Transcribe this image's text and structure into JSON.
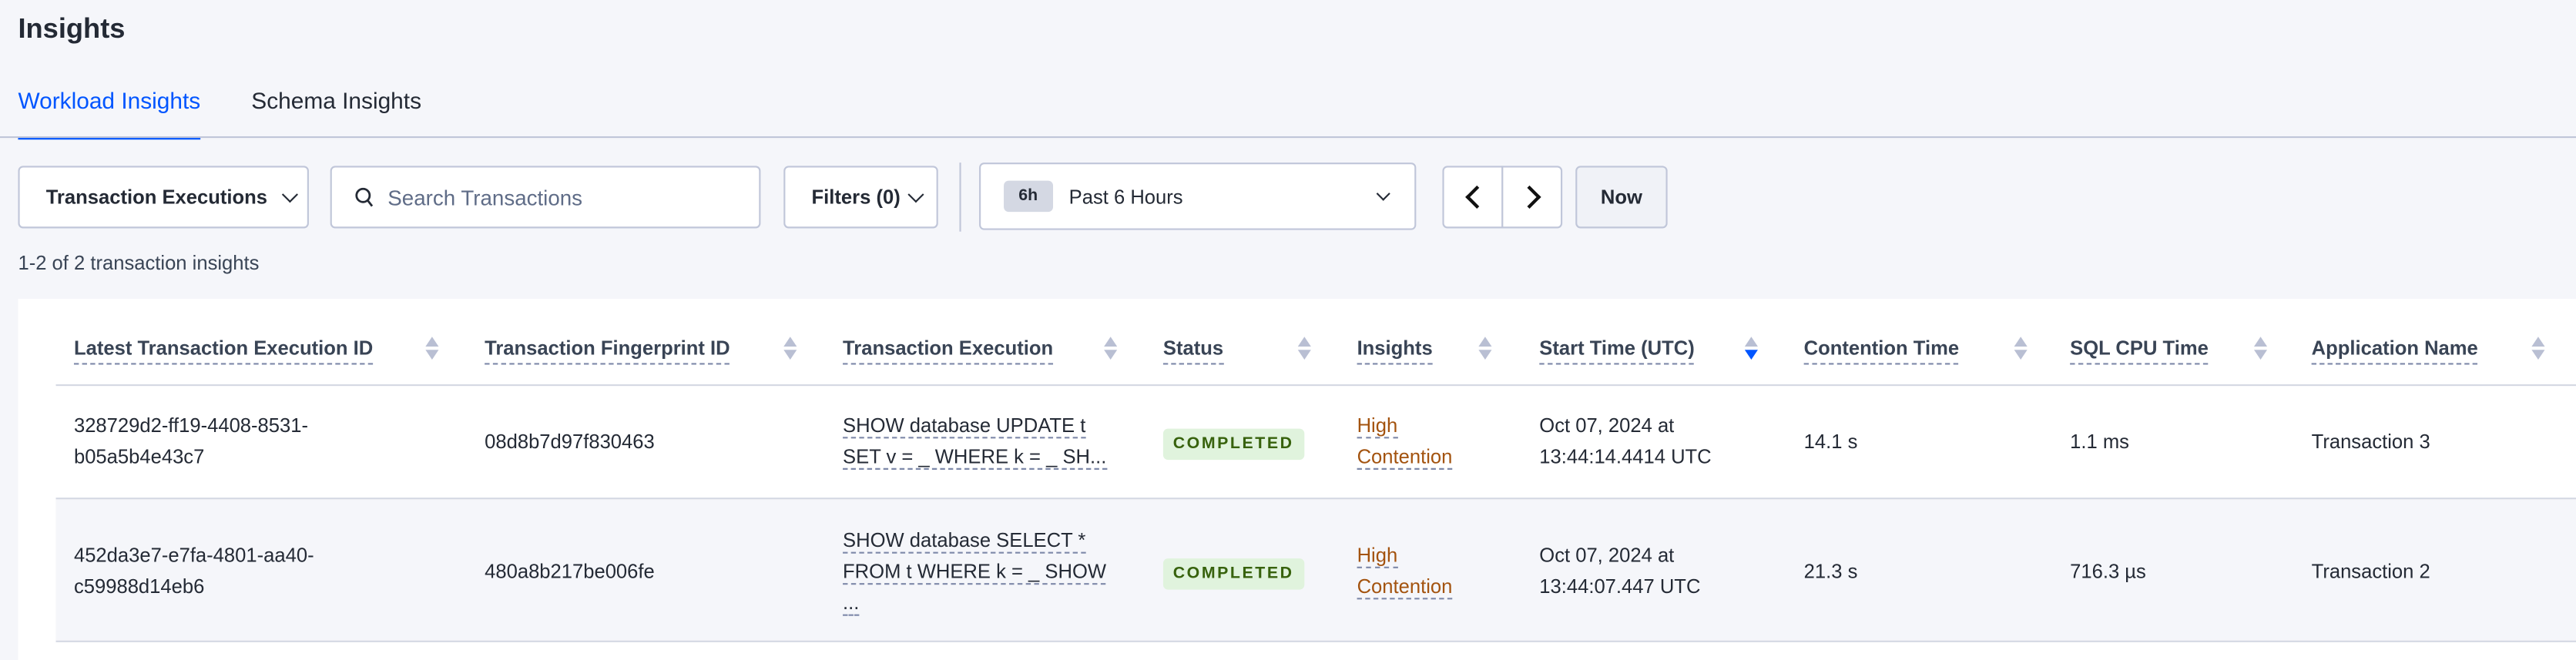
{
  "page_title": "Insights",
  "tabs": [
    {
      "label": "Workload Insights",
      "active": true
    },
    {
      "label": "Schema Insights",
      "active": false
    }
  ],
  "toolbar": {
    "view_select": "Transaction Executions",
    "search_placeholder": "Search Transactions",
    "filters_label": "Filters (0)",
    "time_badge": "6h",
    "time_range": "Past 6 Hours",
    "now_label": "Now"
  },
  "result_count": "1-2 of 2 transaction insights",
  "table": {
    "columns": [
      "Latest Transaction Execution ID",
      "Transaction Fingerprint ID",
      "Transaction Execution",
      "Status",
      "Insights",
      "Start Time (UTC)",
      "Contention Time",
      "SQL CPU Time",
      "Application Name"
    ],
    "sorted_column": "Start Time (UTC)",
    "sort_direction": "descending",
    "rows": [
      {
        "exec_id_1": "328729d2-ff19-4408-8531-",
        "exec_id_2": "b05a5b4e43c7",
        "fingerprint": "08d8b7d97f830463",
        "exec_1": "SHOW database UPDATE t",
        "exec_2": "SET v = _ WHERE k = _ SH...",
        "exec_3": "",
        "status": "COMPLETED",
        "insight_1": "High",
        "insight_2": "Contention",
        "start_1": "Oct 07, 2024 at",
        "start_2": "13:44:14.4414 UTC",
        "contention": "14.1 s",
        "cpu": "1.1 ms",
        "app": "Transaction 3"
      },
      {
        "exec_id_1": "452da3e7-e7fa-4801-aa40-",
        "exec_id_2": "c59988d14eb6",
        "fingerprint": "480a8b217be006fe",
        "exec_1": "SHOW database SELECT *",
        "exec_2": "FROM t WHERE k = _ SHOW",
        "exec_3": "...",
        "status": "COMPLETED",
        "insight_1": "High",
        "insight_2": "Contention",
        "start_1": "Oct 07, 2024 at",
        "start_2": "13:44:07.447 UTC",
        "contention": "21.3 s",
        "cpu": "716.3 µs",
        "app": "Transaction 2"
      }
    ]
  },
  "colors": {
    "accent": "#0055ff",
    "status_bg": "#e0f3dd",
    "status_text": "#37620d",
    "insight_text": "#a3530f"
  }
}
